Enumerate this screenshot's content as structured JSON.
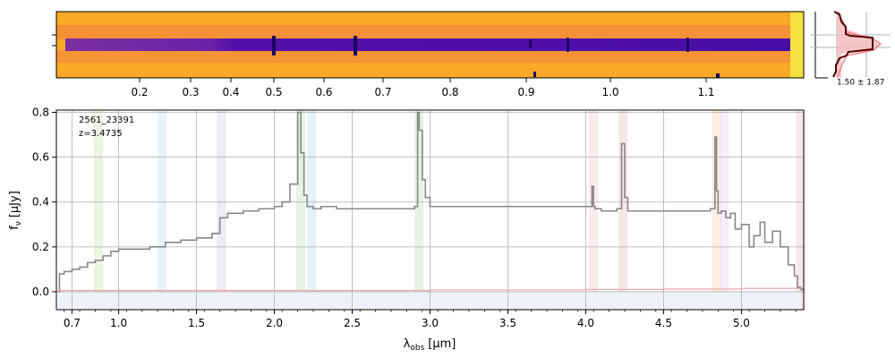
{
  "chart_data": [
    {
      "type": "heatmap",
      "panel": "2D spectrum",
      "colormap": "plasma",
      "top_axis_ticks": [
        "0.2",
        "0.3",
        "0.4",
        "0.5",
        "0.6",
        "0.7",
        "0.8",
        "0.9",
        "1.0",
        "1.1"
      ]
    },
    {
      "type": "line",
      "panel": "spatial profile",
      "annotation": "1.50 ± 1.87",
      "colors": {
        "profile": "#a00000",
        "model": "#ff8080",
        "fill": "#f5c0c0"
      }
    },
    {
      "type": "line",
      "panel": "1D spectrum",
      "object_id": "2561_23391",
      "redshift_label": "z=3.4735",
      "xlabel": "λ",
      "xlabel_sub": "obs",
      "xlabel_unit": "[μm]",
      "ylabel": "f",
      "ylabel_sub": "ν",
      "ylabel_unit": "[μJy]",
      "xlim": [
        0.6,
        5.4
      ],
      "ylim": [
        -0.08,
        0.81
      ],
      "grid": true,
      "x_tick_labels": [
        "0.7",
        "1.0",
        "1.5",
        "2.0",
        "2.5",
        "3.0",
        "3.5",
        "4.0",
        "4.5",
        "5.0"
      ],
      "y_tick_labels": [
        "0.0",
        "0.2",
        "0.4",
        "0.6",
        "0.8"
      ],
      "series": [
        {
          "color": "#888888",
          "x": [
            0.61,
            0.62,
            0.65,
            0.7,
            0.75,
            0.8,
            0.85,
            0.9,
            0.95,
            1.0,
            1.1,
            1.2,
            1.3,
            1.4,
            1.5,
            1.6,
            1.65,
            1.7,
            1.8,
            1.9,
            2.0,
            2.05,
            2.1,
            2.15,
            2.17,
            2.19,
            2.21,
            2.25,
            2.3,
            2.4,
            2.5,
            2.6,
            2.7,
            2.8,
            2.9,
            2.92,
            2.93,
            2.95,
            2.97,
            3.0,
            3.05,
            3.1,
            3.2,
            3.3,
            3.4,
            3.5,
            3.6,
            3.7,
            3.8,
            3.9,
            4.0,
            4.04,
            4.05,
            4.06,
            4.1,
            4.15,
            4.2,
            4.23,
            4.25,
            4.27,
            4.3,
            4.4,
            4.5,
            4.6,
            4.7,
            4.8,
            4.83,
            4.84,
            4.85,
            4.87,
            4.9,
            4.93,
            4.96,
            5.0,
            5.05,
            5.08,
            5.12,
            5.15,
            5.2,
            5.25,
            5.3,
            5.34,
            5.36,
            5.38,
            5.4
          ],
          "y": [
            0.0,
            0.08,
            0.09,
            0.1,
            0.11,
            0.13,
            0.14,
            0.16,
            0.18,
            0.19,
            0.19,
            0.2,
            0.22,
            0.23,
            0.24,
            0.26,
            0.33,
            0.35,
            0.36,
            0.37,
            0.38,
            0.4,
            0.48,
            0.8,
            0.62,
            0.43,
            0.38,
            0.37,
            0.38,
            0.37,
            0.37,
            0.37,
            0.37,
            0.37,
            0.38,
            0.8,
            0.72,
            0.5,
            0.42,
            0.38,
            0.38,
            0.38,
            0.38,
            0.38,
            0.38,
            0.38,
            0.38,
            0.38,
            0.38,
            0.38,
            0.38,
            0.47,
            0.38,
            0.37,
            0.36,
            0.36,
            0.37,
            0.66,
            0.42,
            0.36,
            0.36,
            0.36,
            0.36,
            0.36,
            0.36,
            0.37,
            0.69,
            0.45,
            0.35,
            0.36,
            0.33,
            0.35,
            0.28,
            0.3,
            0.2,
            0.25,
            0.31,
            0.22,
            0.27,
            0.2,
            0.12,
            0.07,
            0.02,
            0.01,
            0.0
          ]
        },
        {
          "color": "#f0a0a0",
          "x": [
            0.61,
            3.0,
            4.0,
            4.5,
            5.0,
            5.4
          ],
          "y": [
            0.005,
            0.008,
            0.01,
            0.012,
            0.015,
            0.02
          ]
        }
      ],
      "bands": [
        {
          "x": 0.87,
          "color": "#c8dca0"
        },
        {
          "x": 1.28,
          "color": "#b0d8f0"
        },
        {
          "x": 1.66,
          "color": "#c8b8e0"
        },
        {
          "x": 2.17,
          "color": "#a8d8a8"
        },
        {
          "x": 2.24,
          "color": "#a8d0e8"
        },
        {
          "x": 2.93,
          "color": "#a8d8a8"
        },
        {
          "x": 4.05,
          "color": "#e8c0c0"
        },
        {
          "x": 4.24,
          "color": "#e0b0b0"
        },
        {
          "x": 4.84,
          "color": "#f5c8a0"
        },
        {
          "x": 4.89,
          "color": "#e8c8e8"
        },
        {
          "x": 5.38,
          "color": "#e8b0d0"
        }
      ]
    }
  ]
}
